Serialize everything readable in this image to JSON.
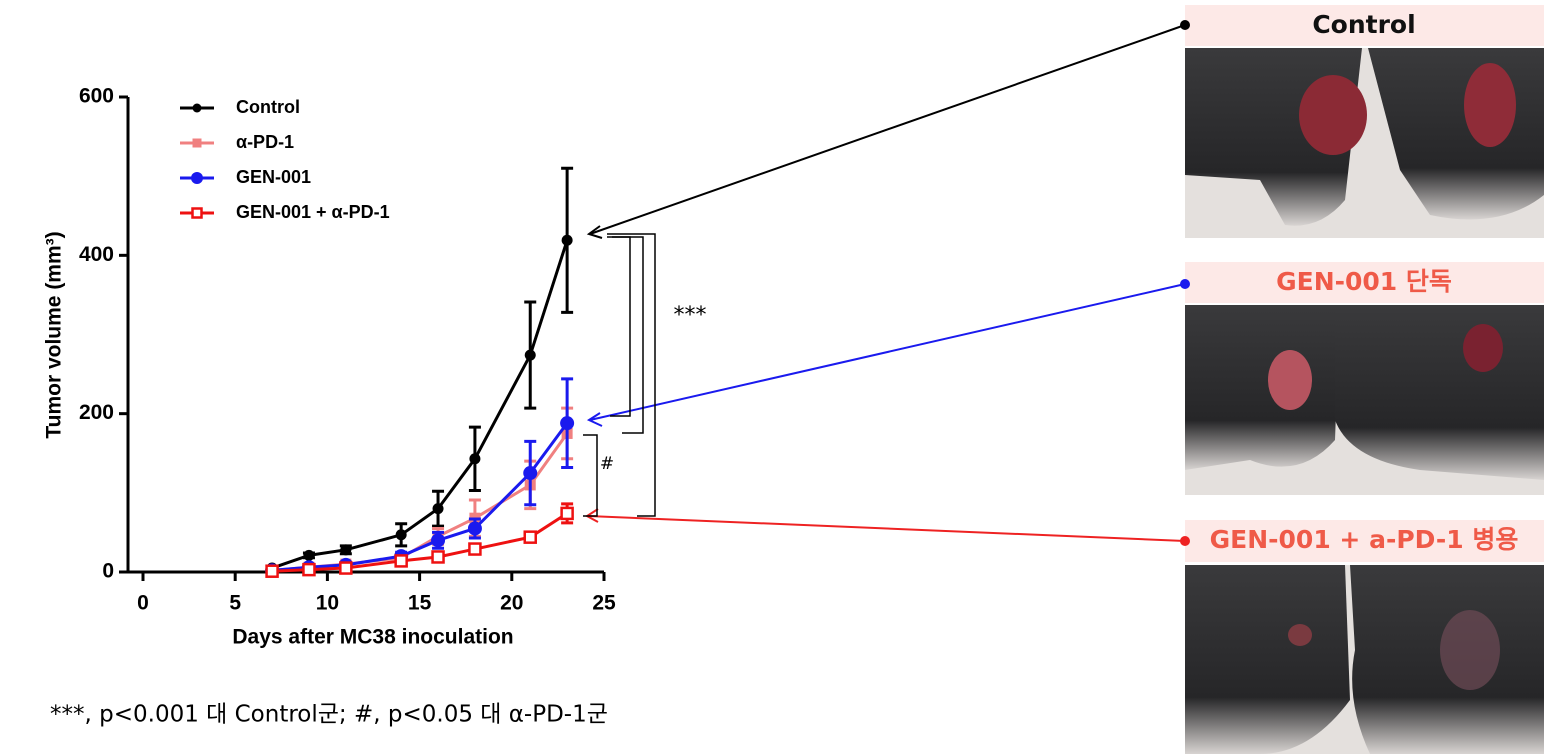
{
  "chart_data": {
    "type": "line",
    "x_label": "Days after MC38 inoculation",
    "y_label": "Tumor volume (mm³)",
    "x": [
      7,
      9,
      11,
      14,
      16,
      18,
      21,
      23
    ],
    "xlim": [
      0,
      25
    ],
    "xticks": [
      0,
      5,
      10,
      15,
      20,
      25
    ],
    "ylim": [
      0,
      600
    ],
    "yticks": [
      0,
      200,
      400,
      600
    ],
    "series": [
      {
        "name": "Control",
        "color": "#000000",
        "marker": "circle",
        "values": [
          5,
          21,
          28,
          47,
          80,
          143,
          274,
          419
        ],
        "errors": [
          2,
          3,
          5,
          14,
          22,
          40,
          67,
          91
        ]
      },
      {
        "name": "α-PD-1",
        "color": "#f08080",
        "marker": "square",
        "values": [
          2,
          6,
          10,
          18,
          45,
          68,
          110,
          175
        ],
        "errors": [
          1,
          2,
          3,
          5,
          10,
          23,
          30,
          32
        ]
      },
      {
        "name": "GEN-001",
        "color": "#1a1aee",
        "marker": "circle",
        "values": [
          2,
          6,
          9,
          20,
          40,
          55,
          125,
          188
        ],
        "errors": [
          1,
          2,
          3,
          5,
          10,
          12,
          40,
          56
        ]
      },
      {
        "name": "GEN-001 + α-PD-1",
        "color": "#ee1111",
        "marker": "open-square",
        "values": [
          1,
          3,
          5,
          14,
          19,
          29,
          44,
          74
        ],
        "errors": [
          1,
          1,
          2,
          3,
          4,
          5,
          6,
          12
        ]
      }
    ],
    "annotations": [
      "***",
      "#"
    ],
    "footnote": "***, p<0.001 대 Control군; #, p<0.05 대 α-PD-1군"
  },
  "panels": {
    "labels": [
      "Control",
      "GEN-001 단독",
      "GEN-001 + a-PD-1 병용"
    ]
  }
}
